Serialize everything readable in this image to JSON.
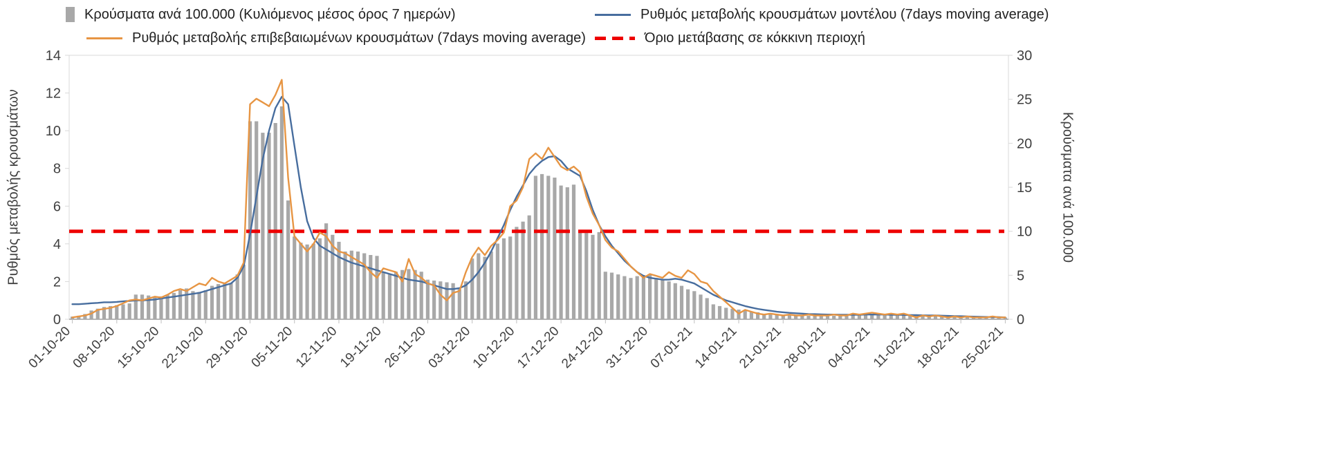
{
  "legend": {
    "bars": "Κρούσματα ανά 100.000 (Κυλιόμενος μέσος όρος 7 ημερών)",
    "model": "Ρυθμός μεταβολής κρουσμάτων μοντέλου (7days moving average)",
    "confirmed": "Ρυθμός μεταβολής επιβεβαιωμένων κρουσμάτων (7days moving average)",
    "threshold": "Όριο μετάβασης σε κόκκινη περιοχή"
  },
  "axes": {
    "left_title": "Ρυθμός μεταβολής κρουσμάτων",
    "right_title": "Κρούσματα ανά 100.000",
    "left_ticks": [
      0,
      2,
      4,
      6,
      8,
      10,
      12,
      14
    ],
    "right_ticks": [
      0,
      5,
      10,
      15,
      20,
      25,
      30
    ],
    "left_range": [
      0,
      14
    ],
    "right_range": [
      0,
      30
    ]
  },
  "colors": {
    "bars": "#a8a8a8",
    "model": "#476d9e",
    "confirmed": "#e79543",
    "threshold": "#ee0000",
    "axis_line": "#d9d9d9",
    "bottom_axis": "#9e9e9e",
    "tick_text": "#404040"
  },
  "chart_data": {
    "type": "bar",
    "title": "",
    "xlabel": "",
    "ylabel_left": "Ρυθμός μεταβολής κρουσμάτων",
    "ylabel_right": "Κρούσματα ανά 100.000",
    "ylim_left": [
      0,
      14
    ],
    "ylim_right": [
      0,
      30
    ],
    "grid": false,
    "legend_position": "top",
    "x_tick_labels": [
      "01-10-20",
      "08-10-20",
      "15-10-20",
      "22-10-20",
      "29-10-20",
      "05-11-20",
      "12-11-20",
      "19-11-20",
      "26-11-20",
      "03-12-20",
      "10-12-20",
      "17-12-20",
      "24-12-20",
      "31-12-20",
      "07-01-21",
      "14-01-21",
      "21-01-21",
      "28-01-21",
      "04-02-21",
      "11-02-21",
      "18-02-21",
      "25-02-21"
    ],
    "x_tick_every_days": 7,
    "series": [
      {
        "name": "Κρούσματα ανά 100.000 (Κυλιόμενος μέσος όρος 7 ημερών)",
        "type": "bar",
        "axis": "right",
        "values": [
          0.3,
          0.4,
          0.6,
          1.0,
          1.2,
          1.4,
          1.5,
          1.6,
          1.7,
          1.8,
          2.8,
          2.8,
          2.7,
          2.6,
          2.6,
          2.8,
          3.0,
          3.3,
          3.5,
          3.2,
          3.1,
          3.3,
          3.8,
          4.0,
          4.1,
          4.1,
          5.1,
          6.2,
          22.5,
          22.5,
          21.2,
          21.2,
          22.3,
          24.2,
          13.5,
          9.4,
          8.7,
          8.5,
          8.6,
          9.2,
          10.9,
          9.6,
          8.8,
          7.7,
          7.8,
          7.7,
          7.5,
          7.3,
          7.2,
          5.4,
          5.1,
          5.4,
          5.6,
          5.7,
          5.6,
          5.4,
          4.5,
          4.4,
          4.3,
          4.2,
          4.1,
          3.4,
          4.3,
          6.9,
          7.5,
          7.1,
          7.7,
          8.6,
          9.2,
          9.4,
          10.5,
          11.1,
          11.8,
          16.3,
          16.5,
          16.3,
          16.1,
          15.2,
          15.0,
          15.3,
          9.9,
          9.8,
          9.6,
          9.9,
          5.4,
          5.3,
          5.1,
          4.9,
          4.7,
          4.9,
          5.0,
          5.1,
          4.7,
          4.5,
          4.3,
          4.1,
          3.8,
          3.4,
          3.2,
          2.8,
          2.4,
          1.7,
          1.5,
          1.3,
          1.2,
          1.1,
          1.0,
          0.9,
          0.8,
          0.6,
          0.6,
          0.6,
          0.5,
          0.5,
          0.5,
          0.4,
          0.4,
          0.4,
          0.4,
          0.4,
          0.4,
          0.4,
          0.4,
          0.5,
          0.5,
          0.6,
          0.6,
          0.6,
          0.5,
          0.5,
          0.5,
          0.6,
          0.5,
          0.4,
          0.4,
          0.4,
          0.4,
          0.3,
          0.3,
          0.3,
          0.3,
          0.3,
          0.2,
          0.2,
          0.2,
          0.2,
          0.2,
          0.2
        ]
      },
      {
        "name": "Ρυθμός μεταβολής κρουσμάτων μοντέλου (7days moving average)",
        "type": "line",
        "axis": "left",
        "values": [
          0.8,
          0.8,
          0.82,
          0.85,
          0.87,
          0.9,
          0.9,
          0.92,
          0.95,
          0.97,
          1.0,
          1.0,
          1.02,
          1.05,
          1.1,
          1.15,
          1.2,
          1.25,
          1.3,
          1.35,
          1.4,
          1.5,
          1.6,
          1.7,
          1.8,
          1.9,
          2.2,
          2.8,
          4.5,
          6.5,
          8.5,
          10.0,
          11.2,
          11.8,
          11.4,
          9.2,
          7.0,
          5.2,
          4.3,
          3.9,
          3.7,
          3.5,
          3.3,
          3.15,
          3.0,
          2.9,
          2.8,
          2.7,
          2.6,
          2.5,
          2.4,
          2.3,
          2.2,
          2.1,
          2.05,
          2.0,
          1.9,
          1.8,
          1.7,
          1.6,
          1.6,
          1.65,
          1.8,
          2.1,
          2.5,
          3.0,
          3.6,
          4.3,
          5.0,
          5.8,
          6.5,
          7.1,
          7.7,
          8.1,
          8.4,
          8.6,
          8.65,
          8.4,
          8.0,
          7.8,
          7.6,
          6.8,
          5.8,
          5.0,
          4.4,
          3.9,
          3.5,
          3.1,
          2.8,
          2.5,
          2.3,
          2.2,
          2.15,
          2.1,
          2.1,
          2.15,
          2.1,
          2.0,
          1.9,
          1.7,
          1.5,
          1.3,
          1.15,
          1.0,
          0.9,
          0.8,
          0.7,
          0.62,
          0.55,
          0.5,
          0.45,
          0.4,
          0.37,
          0.34,
          0.32,
          0.3,
          0.28,
          0.27,
          0.26,
          0.25,
          0.25,
          0.24,
          0.24,
          0.24,
          0.24,
          0.25,
          0.25,
          0.25,
          0.25,
          0.24,
          0.24,
          0.23,
          0.22,
          0.22,
          0.21,
          0.2,
          0.2,
          0.19,
          0.18,
          0.17,
          0.16,
          0.15,
          0.14,
          0.13,
          0.12,
          0.12,
          0.11,
          0.1
        ]
      },
      {
        "name": "Ρυθμός μεταβολής επιβεβαιωμένων κρουσμάτων (7days moving average)",
        "type": "line",
        "axis": "left",
        "values": [
          0.1,
          0.15,
          0.2,
          0.3,
          0.5,
          0.55,
          0.6,
          0.7,
          0.85,
          1.0,
          1.05,
          1.0,
          1.1,
          1.2,
          1.15,
          1.3,
          1.5,
          1.6,
          1.5,
          1.7,
          1.9,
          1.8,
          2.2,
          2.0,
          1.9,
          2.1,
          2.3,
          3.0,
          11.4,
          11.7,
          11.5,
          11.3,
          11.9,
          12.7,
          7.5,
          4.4,
          4.0,
          3.6,
          4.0,
          4.6,
          4.4,
          3.9,
          3.6,
          3.5,
          3.3,
          3.1,
          2.9,
          2.5,
          2.2,
          2.7,
          2.6,
          2.5,
          2.0,
          3.2,
          2.4,
          2.2,
          1.9,
          1.8,
          1.3,
          1.0,
          1.4,
          1.5,
          2.5,
          3.3,
          3.8,
          3.4,
          3.9,
          4.2,
          4.6,
          6.0,
          6.3,
          7.0,
          8.5,
          8.8,
          8.5,
          9.1,
          8.6,
          8.1,
          7.9,
          8.1,
          7.8,
          6.5,
          5.6,
          5.0,
          4.2,
          3.8,
          3.6,
          3.2,
          2.8,
          2.5,
          2.2,
          2.4,
          2.3,
          2.2,
          2.5,
          2.3,
          2.2,
          2.6,
          2.4,
          2.0,
          1.9,
          1.5,
          1.2,
          0.9,
          0.6,
          0.3,
          0.5,
          0.4,
          0.3,
          0.25,
          0.3,
          0.25,
          0.2,
          0.25,
          0.2,
          0.2,
          0.25,
          0.2,
          0.2,
          0.2,
          0.25,
          0.2,
          0.2,
          0.3,
          0.25,
          0.3,
          0.35,
          0.3,
          0.25,
          0.3,
          0.25,
          0.3,
          0.2,
          0.1,
          0.2,
          0.15,
          0.2,
          0.15,
          0.1,
          0.15,
          0.1,
          0.15,
          0.1,
          0.1,
          0.1,
          0.15,
          0.1,
          0.1
        ]
      },
      {
        "name": "Όριο μετάβασης σε κόκκινη περιοχή",
        "type": "threshold",
        "axis": "right",
        "value": 10
      }
    ]
  }
}
